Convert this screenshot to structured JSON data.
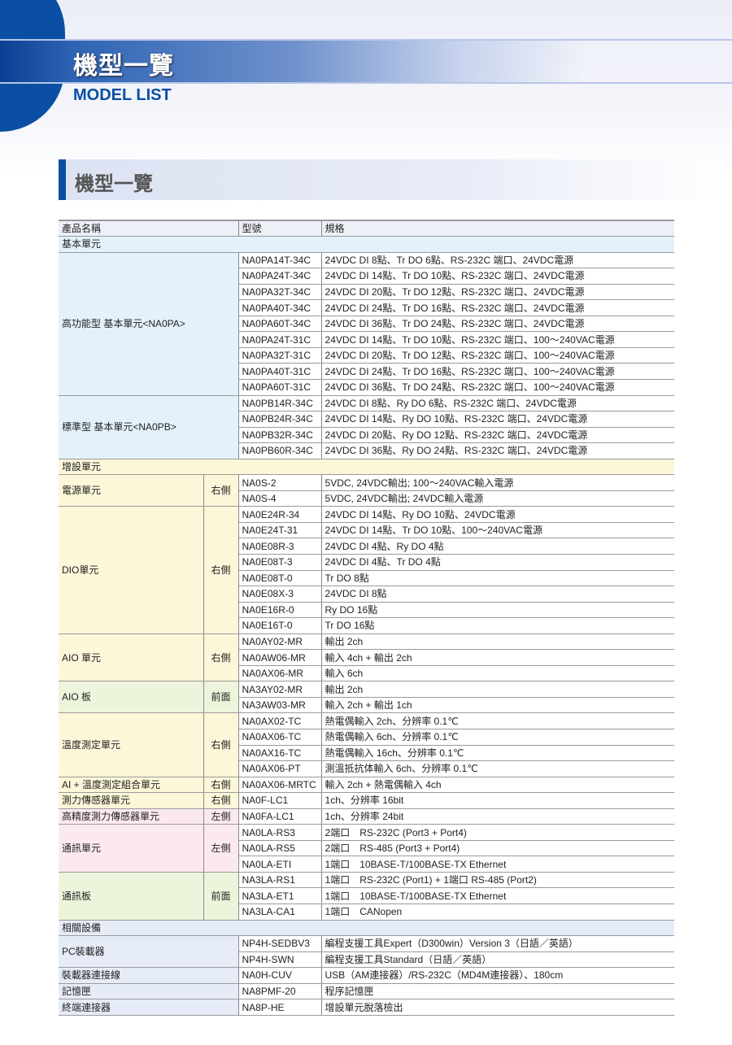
{
  "header": {
    "title": "機型一覽",
    "subtitle": "MODEL LIST"
  },
  "section_title": "機型一覽",
  "table": {
    "columns": [
      "產品名稱",
      "型號",
      "規格"
    ],
    "sections": [
      {
        "label": "基本單元",
        "color": "#e3f1fb",
        "groups": [
          {
            "name": "高功能型 基本單元<NA0PA>",
            "side": null,
            "color": "#e3f1fb",
            "items": [
              [
                "NA0PA14T-34C",
                "24VDC DI 8點、Tr DO 6點、RS-232C 端口、24VDC電源"
              ],
              [
                "NA0PA24T-34C",
                "24VDC DI 14點、Tr DO 10點、RS-232C 端口、24VDC電源"
              ],
              [
                "NA0PA32T-34C",
                "24VDC DI 20點、Tr DO 12點、RS-232C 端口、24VDC電源"
              ],
              [
                "NA0PA40T-34C",
                "24VDC DI 24點、Tr DO 16點、RS-232C 端口、24VDC電源"
              ],
              [
                "NA0PA60T-34C",
                "24VDC DI 36點、Tr DO 24點、RS-232C 端口、24VDC電源"
              ],
              [
                "NA0PA24T-31C",
                "24VDC DI 14點、Tr DO 10點、RS-232C 端口、100～240VAC電源"
              ],
              [
                "NA0PA32T-31C",
                "24VDC DI 20點、Tr DO 12點、RS-232C 端口、100～240VAC電源"
              ],
              [
                "NA0PA40T-31C",
                "24VDC DI 24點、Tr DO 16點、RS-232C 端口、100～240VAC電源"
              ],
              [
                "NA0PA60T-31C",
                "24VDC DI 36點、Tr DO 24點、RS-232C 端口、100～240VAC電源"
              ]
            ]
          },
          {
            "name": "標準型 基本單元<NA0PB>",
            "side": null,
            "color": "#e3f1fb",
            "items": [
              [
                "NA0PB14R-34C",
                "24VDC DI 8點、Ry DO 6點、RS-232C 端口、24VDC電源"
              ],
              [
                "NA0PB24R-34C",
                "24VDC DI 14點、Ry DO 10點、RS-232C 端口、24VDC電源"
              ],
              [
                "NA0PB32R-34C",
                "24VDC DI 20點、Ry DO 12點、RS-232C 端口、24VDC電源"
              ],
              [
                "NA0PB60R-34C",
                "24VDC DI 36點、Ry DO 24點、RS-232C 端口、24VDC電源"
              ]
            ]
          }
        ]
      },
      {
        "label": "增設單元",
        "color": "#fdf7d9",
        "groups": [
          {
            "name": "電源單元",
            "side": "右側",
            "color": "#fdf7d9",
            "items": [
              [
                "NA0S-2",
                "5VDC, 24VDC輸出; 100～240VAC輸入電源"
              ],
              [
                "NA0S-4",
                "5VDC, 24VDC輸出; 24VDC輸入電源"
              ]
            ]
          },
          {
            "name": "DIO單元",
            "side": "右側",
            "color": "#fdf7d9",
            "items": [
              [
                "NA0E24R-34",
                "24VDC DI 14點、Ry DO 10點、24VDC電源"
              ],
              [
                "NA0E24T-31",
                "24VDC DI 14點、Tr DO 10點、100～240VAC電源"
              ],
              [
                "NA0E08R-3",
                "24VDC DI 4點、Ry DO 4點"
              ],
              [
                "NA0E08T-3",
                "24VDC DI 4點、Tr DO 4點"
              ],
              [
                "NA0E08T-0",
                "Tr DO 8點"
              ],
              [
                "NA0E08X-3",
                "24VDC DI 8點"
              ],
              [
                "NA0E16R-0",
                "Ry DO 16點"
              ],
              [
                "NA0E16T-0",
                "Tr DO 16點"
              ]
            ]
          },
          {
            "name": "AIO 單元",
            "side": "右側",
            "color": "#fdf7d9",
            "items": [
              [
                "NA0AY02-MR",
                "輸出 2ch"
              ],
              [
                "NA0AW06-MR",
                "輸入 4ch + 輸出 2ch"
              ],
              [
                "NA0AX06-MR",
                "輸入 6ch"
              ]
            ]
          },
          {
            "name": "AIO 板",
            "side": "前面",
            "color": "#edf4dc",
            "items": [
              [
                "NA3AY02-MR",
                "輸出 2ch"
              ],
              [
                "NA3AW03-MR",
                "輸入 2ch + 輸出 1ch"
              ]
            ]
          },
          {
            "name": "溫度測定單元",
            "side": "右側",
            "color": "#fdf7d9",
            "items": [
              [
                "NA0AX02-TC",
                "熱電偶輸入 2ch、分辨率 0.1℃"
              ],
              [
                "NA0AX06-TC",
                "熱電偶輸入 6ch、分辨率 0.1℃"
              ],
              [
                "NA0AX16-TC",
                "熱電偶輸入 16ch、分辨率 0.1℃"
              ],
              [
                "NA0AX06-PT",
                "測溫抵抗体輸入 6ch、分辨率 0.1℃"
              ]
            ]
          },
          {
            "name": "AI + 溫度測定組合單元",
            "side": "右側",
            "color": "#fdf7d9",
            "items": [
              [
                "NA0AX06-MRTC",
                "輸入 2ch + 熱電偶輸入 4ch"
              ]
            ]
          },
          {
            "name": "測力傳感器單元",
            "side": "右側",
            "color": "#fdf7d9",
            "items": [
              [
                "NA0F-LC1",
                "1ch、分辨率 16bit"
              ]
            ]
          },
          {
            "name": "高精度測力傳感器單元",
            "side": "左側",
            "color": "#fce9ef",
            "items": [
              [
                "NA0FA-LC1",
                "1ch、分辨率 24bit"
              ]
            ]
          },
          {
            "name": "通訊單元",
            "side": "左側",
            "color": "#fce9ef",
            "items": [
              [
                "NA0LA-RS3",
                "2端口　RS-232C (Port3 + Port4)"
              ],
              [
                "NA0LA-RS5",
                "2端口　RS-485 (Port3 + Port4)"
              ],
              [
                "NA0LA-ETI",
                "1端口　10BASE-T/100BASE-TX Ethernet"
              ]
            ]
          },
          {
            "name": "通訊板",
            "side": "前面",
            "color": "#edf4dc",
            "items": [
              [
                "NA3LA-RS1",
                "1端口　RS-232C (Port1) + 1端口 RS-485 (Port2)"
              ],
              [
                "NA3LA-ET1",
                "1端口　10BASE-T/100BASE-TX Ethernet"
              ],
              [
                "NA3LA-CA1",
                "1端口　CANopen"
              ]
            ]
          }
        ]
      },
      {
        "label": "相關設備",
        "color": "#e6ecf7",
        "groups": [
          {
            "name": "PC裝載器",
            "side": null,
            "color": "#e6ecf7",
            "items": [
              [
                "NP4H-SEDBV3",
                "編程支援工具Expert（D300win）Version 3（日語／英語）"
              ],
              [
                "NP4H-SWN",
                "編程支援工具Standard（日語／英語）"
              ]
            ]
          },
          {
            "name": "裝載器連接線",
            "side": null,
            "color": "#e6ecf7",
            "items": [
              [
                "NA0H-CUV",
                "USB（AM連接器）/RS-232C（MD4M連接器）、180cm"
              ]
            ]
          },
          {
            "name": "記憶匣",
            "side": null,
            "color": "#e6ecf7",
            "items": [
              [
                "NA8PMF-20",
                "程序記憶匣"
              ]
            ]
          },
          {
            "name": "終端連接器",
            "side": null,
            "color": "#e6ecf7",
            "items": [
              [
                "NA8P-HE",
                "增設單元脫落檢出"
              ]
            ]
          }
        ]
      }
    ]
  }
}
